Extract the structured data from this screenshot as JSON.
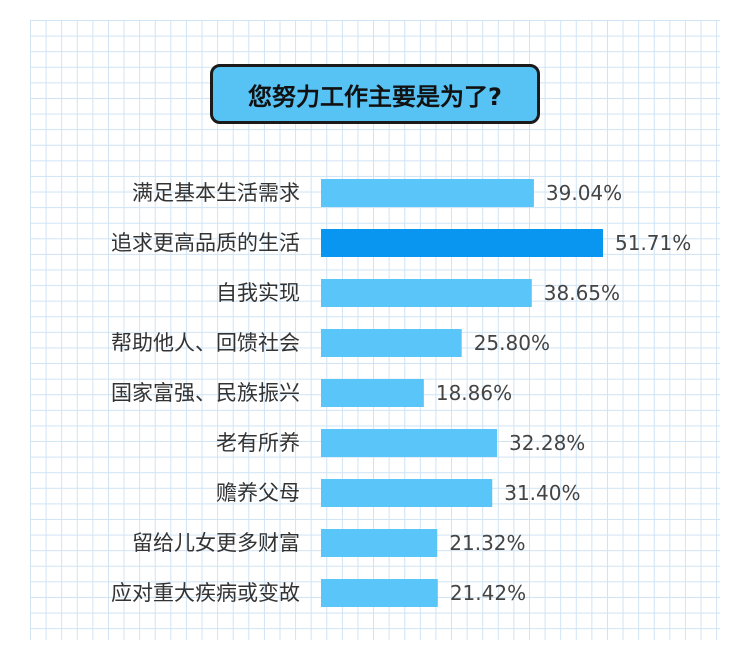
{
  "chart_data": {
    "type": "bar",
    "orientation": "horizontal",
    "title": "您努力工作主要是为了?",
    "categories": [
      "满足基本生活需求",
      "追求更高品质的生活",
      "自我实现",
      "帮助他人、回馈社会",
      "国家富强、民族振兴",
      "老有所养",
      "赡养父母",
      "留给儿女更多财富",
      "应对重大疾病或变故"
    ],
    "values": [
      39.04,
      51.71,
      38.65,
      25.8,
      18.86,
      32.28,
      31.4,
      21.32,
      21.42
    ],
    "value_labels": [
      "39.04%",
      "51.71%",
      "38.65%",
      "25.80%",
      "18.86%",
      "32.28%",
      "31.40%",
      "21.32%",
      "21.42%"
    ],
    "highlight_index": 1,
    "xlim": [
      0,
      51.71
    ],
    "grid": true,
    "colors": {
      "bar": "#5ac5f8",
      "highlight": "#0896f0",
      "title_bg": "#57c3f5",
      "text": "#333333"
    }
  }
}
